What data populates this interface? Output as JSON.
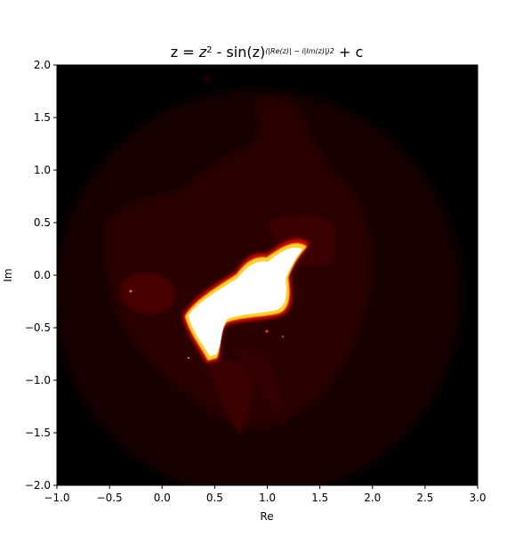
{
  "chart_data": {
    "type": "heatmap",
    "title": {
      "prefix": "z = ",
      "z": "z",
      "z_exp": "2",
      "middle": " - sin(z)",
      "exp_inner": "(|Re(z)| − i|Im(z)|)",
      "exp_power": "2",
      "suffix": " + c"
    },
    "xlabel": "Re",
    "ylabel": "Im",
    "xlim": [
      -1.0,
      3.0
    ],
    "ylim": [
      -2.0,
      2.0
    ],
    "x_ticks": [
      "−1.0",
      "−0.5",
      "0.0",
      "0.5",
      "1.0",
      "1.5",
      "2.0",
      "2.5",
      "3.0"
    ],
    "y_ticks": [
      "2.0",
      "1.5",
      "1.0",
      "0.5",
      "0.0",
      "−0.5",
      "−1.0",
      "−1.5",
      "−2.0"
    ],
    "x_tick_values": [
      -1.0,
      -0.5,
      0.0,
      0.5,
      1.0,
      1.5,
      2.0,
      2.5,
      3.0
    ],
    "y_tick_values": [
      2.0,
      1.5,
      1.0,
      0.5,
      0.0,
      -0.5,
      -1.0,
      -1.5,
      -2.0
    ],
    "colormap": "hot",
    "colors": {
      "background": "#000000",
      "low": "#3a0000",
      "mid": "#e01000",
      "high": "#ffff60",
      "peak": "#ffffff"
    },
    "grid": false
  }
}
